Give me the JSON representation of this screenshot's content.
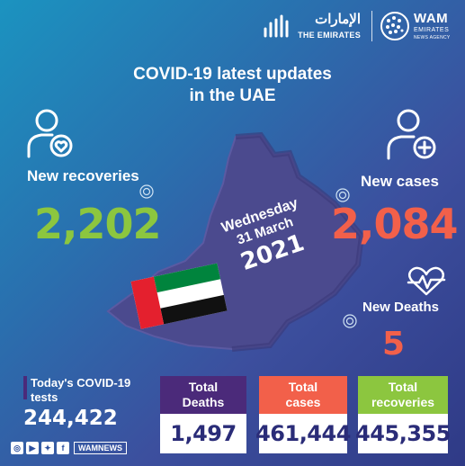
{
  "header": {
    "uae_arabic": "الإمارات",
    "uae_english": "THE EMIRATES",
    "wam_name": "WAM",
    "wam_sub1": "EMIRATES",
    "wam_sub2": "NEWS AGENCY"
  },
  "title": {
    "line1": "COVID-19 latest updates",
    "line2": "in the UAE"
  },
  "recoveries": {
    "label": "New recoveries",
    "value": "2,202",
    "color": "#8cc63f"
  },
  "cases": {
    "label": "New cases",
    "value": "2,084",
    "color": "#f2604a"
  },
  "deaths": {
    "label": "New Deaths",
    "value": "5",
    "color": "#f2604a"
  },
  "date": {
    "day": "Wednesday",
    "month": "31 March",
    "year": "2021"
  },
  "tests": {
    "label_line1": "Today's COVID-19",
    "label_line2": "tests",
    "value": "244,422"
  },
  "totals": [
    {
      "label_line1": "Total",
      "label_line2": "Deaths",
      "value": "1,497",
      "color": "#4b2a7a"
    },
    {
      "label_line1": "Total",
      "label_line2": "cases",
      "value": "461,444",
      "color": "#f2604a"
    },
    {
      "label_line1": "Total",
      "label_line2": "recoveries",
      "value": "445,355",
      "color": "#8cc63f"
    }
  ],
  "footer": {
    "handle": "WAMNEWS",
    "icons": [
      "instagram-icon",
      "youtube-icon",
      "twitter-icon",
      "facebook-icon"
    ]
  }
}
